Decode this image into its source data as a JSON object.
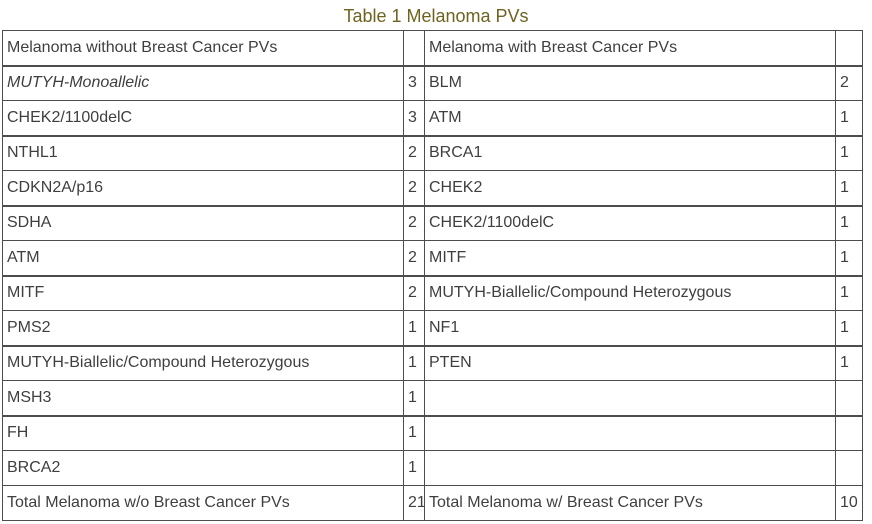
{
  "caption": "Table 1 Melanoma PVs",
  "table": {
    "headers": {
      "left": "Melanoma without Breast Cancer PVs",
      "left_count": "",
      "right": "Melanoma with Breast Cancer PVs",
      "right_count": ""
    },
    "rows": [
      {
        "left_gene": "MUTYH-Monoallelic",
        "left_italic": true,
        "left_count": "3",
        "right_gene": "BLM",
        "right_count": "2"
      },
      {
        "left_gene": "CHEK2/1100delC",
        "left_italic": false,
        "left_count": "3",
        "right_gene": "ATM",
        "right_count": "1"
      },
      {
        "left_gene": "NTHL1",
        "left_italic": false,
        "left_count": "2",
        "right_gene": "BRCA1",
        "right_count": "1"
      },
      {
        "left_gene": "CDKN2A/p16",
        "left_italic": false,
        "left_count": "2",
        "right_gene": "CHEK2",
        "right_count": "1"
      },
      {
        "left_gene": "SDHA",
        "left_italic": false,
        "left_count": "2",
        "right_gene": "CHEK2/1100delC",
        "right_count": "1"
      },
      {
        "left_gene": "ATM",
        "left_italic": false,
        "left_count": "2",
        "right_gene": "MITF",
        "right_count": "1"
      },
      {
        "left_gene": "MITF",
        "left_italic": false,
        "left_count": "2",
        "right_gene": "MUTYH-Biallelic/Compound Heterozygous",
        "right_count": "1"
      },
      {
        "left_gene": "PMS2",
        "left_italic": false,
        "left_count": "1",
        "right_gene": "NF1",
        "right_count": "1"
      },
      {
        "left_gene": "MUTYH-Biallelic/Compound Heterozygous",
        "left_italic": false,
        "left_count": "1",
        "right_gene": "PTEN",
        "right_count": "1"
      },
      {
        "left_gene": "MSH3",
        "left_italic": false,
        "left_count": "1",
        "right_gene": "",
        "right_count": ""
      },
      {
        "left_gene": "FH",
        "left_italic": false,
        "left_count": "1",
        "right_gene": "",
        "right_count": ""
      },
      {
        "left_gene": "BRCA2",
        "left_italic": false,
        "left_count": "1",
        "right_gene": "",
        "right_count": ""
      }
    ],
    "totals": {
      "left_label": "Total Melanoma w/o Breast Cancer PVs",
      "left_count": "21",
      "right_label": "Total Melanoma w/ Breast Cancer PVs",
      "right_count": "10"
    }
  },
  "colors": {
    "caption_color": "#6e6320",
    "text_color": "#3f3f3f",
    "border_color": "#4d4d4d",
    "background": "#ffffff"
  }
}
